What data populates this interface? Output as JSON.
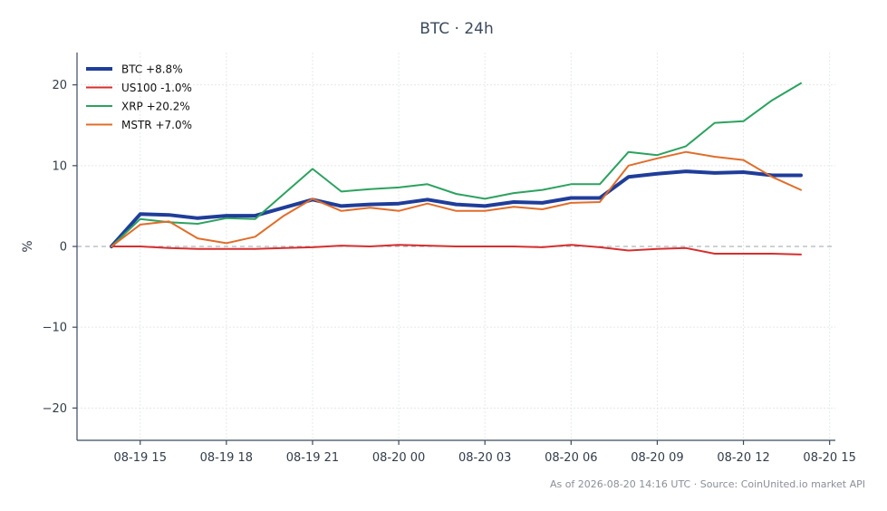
{
  "chart_data": {
    "type": "line",
    "title": "BTC · 24h",
    "xlabel": "",
    "ylabel": "%",
    "ylim": [
      -24,
      24
    ],
    "xlim_hours": [
      -1.2,
      25.2
    ],
    "yticks": [
      -20,
      -10,
      0,
      10,
      20
    ],
    "ytick_labels": [
      "−20",
      "−10",
      "0",
      "10",
      "20"
    ],
    "xticks": [
      1,
      4,
      7,
      10,
      13,
      16,
      19,
      22,
      25
    ],
    "xtick_labels": [
      "08-19 15",
      "08-19 18",
      "08-19 21",
      "08-20 00",
      "08-20 03",
      "08-20 06",
      "08-20 09",
      "08-20 12",
      "08-20 15"
    ],
    "x": [
      "08-19 14",
      "08-19 15",
      "08-19 16",
      "08-19 17",
      "08-19 18",
      "08-19 19",
      "08-19 20",
      "08-19 21",
      "08-19 22",
      "08-19 23",
      "08-20 00",
      "08-20 01",
      "08-20 02",
      "08-20 03",
      "08-20 04",
      "08-20 05",
      "08-20 06",
      "08-20 07",
      "08-20 08",
      "08-20 09",
      "08-20 10",
      "08-20 11",
      "08-20 12",
      "08-20 13",
      "08-20 14"
    ],
    "x_hours": [
      0,
      1,
      2,
      3,
      4,
      5,
      6,
      7,
      8,
      9,
      10,
      11,
      12,
      13,
      14,
      15,
      16,
      17,
      18,
      19,
      20,
      21,
      22,
      23,
      24
    ],
    "zero_line": true,
    "grid": true,
    "legend_position": "top-left",
    "series": [
      {
        "name": "BTC +8.8%",
        "color": "#1f3d99",
        "width": 4,
        "values": [
          0,
          4.0,
          3.9,
          3.5,
          3.8,
          3.8,
          4.8,
          5.8,
          5.0,
          5.2,
          5.3,
          5.8,
          5.2,
          5.0,
          5.5,
          5.4,
          6.0,
          6.0,
          8.6,
          9.0,
          9.3,
          9.1,
          9.2,
          8.8,
          8.8
        ]
      },
      {
        "name": "US100 -1.0%",
        "color": "#d62f2f",
        "width": 2,
        "values": [
          0,
          0.0,
          -0.2,
          -0.3,
          -0.3,
          -0.3,
          -0.2,
          -0.1,
          0.1,
          0.0,
          0.2,
          0.1,
          0.0,
          0.0,
          0.0,
          -0.1,
          0.2,
          -0.1,
          -0.5,
          -0.3,
          -0.2,
          -0.9,
          -0.9,
          -0.9,
          -1.0
        ]
      },
      {
        "name": "XRP +20.2%",
        "color": "#2ca25f",
        "width": 2,
        "values": [
          0,
          3.4,
          3.0,
          2.8,
          3.5,
          3.4,
          6.5,
          9.6,
          6.8,
          7.1,
          7.3,
          7.7,
          6.5,
          5.9,
          6.6,
          7.0,
          7.7,
          7.7,
          11.7,
          11.3,
          12.4,
          15.3,
          15.5,
          18.1,
          20.2
        ]
      },
      {
        "name": "MSTR +7.0%",
        "color": "#e06d2a",
        "width": 2,
        "values": [
          0,
          2.7,
          3.1,
          1.0,
          0.4,
          1.2,
          3.8,
          5.9,
          4.4,
          4.8,
          4.4,
          5.3,
          4.4,
          4.4,
          4.9,
          4.6,
          5.4,
          5.5,
          10.0,
          10.9,
          11.7,
          11.1,
          10.7,
          8.6,
          7.0
        ]
      }
    ]
  },
  "footnote": "As of 2026-08-20 14:16 UTC · Source: CoinUnited.io market API"
}
